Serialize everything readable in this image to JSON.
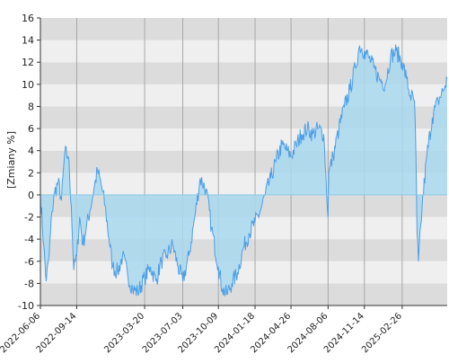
{
  "chart_data": {
    "type": "area",
    "ylabel": "[Zmiany %]",
    "xlabel": "",
    "ylim": [
      -10,
      16
    ],
    "yticks": [
      -10,
      -8,
      -6,
      -4,
      -2,
      0,
      2,
      4,
      6,
      8,
      10,
      12,
      14,
      16
    ],
    "xlim": [
      "2022-06-06",
      "2025-06-30"
    ],
    "xticks": [
      "2022-06-06",
      "2022-09-14",
      "2023-03-20",
      "2023-07-03",
      "2023-10-09",
      "2024-01-18",
      "2024-04-26",
      "2024-08-06",
      "2024-11-14",
      "2025-02-26"
    ],
    "grid": "horizontal alternating bands, vertical lines at date ticks",
    "colors": {
      "line": "#4a9fe8",
      "fill": "#a9d8ee",
      "band_dark": "#dcdcdc",
      "band_light": "#efefef",
      "vgrid": "#a8a8a8"
    },
    "series": [
      {
        "x": [
          "2022-06-06",
          "2022-06-15",
          "2022-06-22",
          "2022-06-30",
          "2022-07-08",
          "2022-07-15",
          "2022-07-25",
          "2022-08-03",
          "2022-08-12",
          "2022-08-22",
          "2022-08-30",
          "2022-09-06",
          "2022-09-14",
          "2022-09-22",
          "2022-10-01",
          "2022-10-10",
          "2022-10-20",
          "2022-10-31",
          "2022-11-10",
          "2022-11-20",
          "2022-12-01",
          "2022-12-12",
          "2022-12-22",
          "2023-01-05",
          "2023-01-18",
          "2023-02-01",
          "2023-02-15",
          "2023-03-01",
          "2023-03-20",
          "2023-04-05",
          "2023-04-20",
          "2023-05-05",
          "2023-05-20",
          "2023-06-05",
          "2023-06-20",
          "2023-07-03",
          "2023-07-20",
          "2023-08-05",
          "2023-08-20",
          "2023-09-05",
          "2023-09-20",
          "2023-10-09",
          "2023-10-20",
          "2023-11-01",
          "2023-11-15",
          "2023-12-01",
          "2023-12-15",
          "2024-01-01",
          "2024-01-18",
          "2024-02-01",
          "2024-02-15",
          "2024-03-01",
          "2024-03-15",
          "2024-04-01",
          "2024-04-15",
          "2024-04-26",
          "2024-05-10",
          "2024-05-25",
          "2024-06-10",
          "2024-06-25",
          "2024-07-10",
          "2024-07-25",
          "2024-08-06",
          "2024-08-08",
          "2024-08-20",
          "2024-09-05",
          "2024-09-20",
          "2024-10-05",
          "2024-10-20",
          "2024-11-01",
          "2024-11-14",
          "2024-11-25",
          "2024-12-10",
          "2024-12-25",
          "2025-01-10",
          "2025-01-25",
          "2025-02-10",
          "2025-02-26",
          "2025-03-10",
          "2025-03-20",
          "2025-04-01",
          "2025-04-05",
          "2025-04-08",
          "2025-04-12",
          "2025-04-22",
          "2025-05-05",
          "2025-05-20",
          "2025-06-05",
          "2025-06-20",
          "2025-06-30"
        ],
        "values": [
          0.0,
          -4.5,
          -7.8,
          -5.5,
          -1.5,
          0.2,
          1.2,
          -0.5,
          3.8,
          3.5,
          -1.0,
          -6.8,
          -5.5,
          -2.0,
          -4.5,
          -3.0,
          -1.5,
          0.5,
          2.2,
          1.0,
          -1.0,
          -4.0,
          -6.5,
          -7.0,
          -5.5,
          -7.2,
          -8.5,
          -8.8,
          -7.5,
          -6.5,
          -7.8,
          -6.0,
          -5.5,
          -4.5,
          -6.5,
          -7.8,
          -5.5,
          -2.0,
          1.5,
          0.5,
          -3.0,
          -6.5,
          -8.5,
          -9.0,
          -8.0,
          -7.0,
          -5.0,
          -3.5,
          -2.5,
          -1.5,
          0.0,
          1.5,
          3.0,
          4.5,
          4.0,
          3.5,
          4.5,
          5.5,
          6.0,
          5.5,
          6.0,
          5.5,
          -2.0,
          2.0,
          3.5,
          6.0,
          8.0,
          9.5,
          11.5,
          13.5,
          13.0,
          12.5,
          11.5,
          10.5,
          10.0,
          12.5,
          13.0,
          12.0,
          10.5,
          9.0,
          8.5,
          3.5,
          -3.5,
          -6.0,
          -1.0,
          3.5,
          7.0,
          8.5,
          9.5,
          10.5
        ]
      }
    ]
  }
}
